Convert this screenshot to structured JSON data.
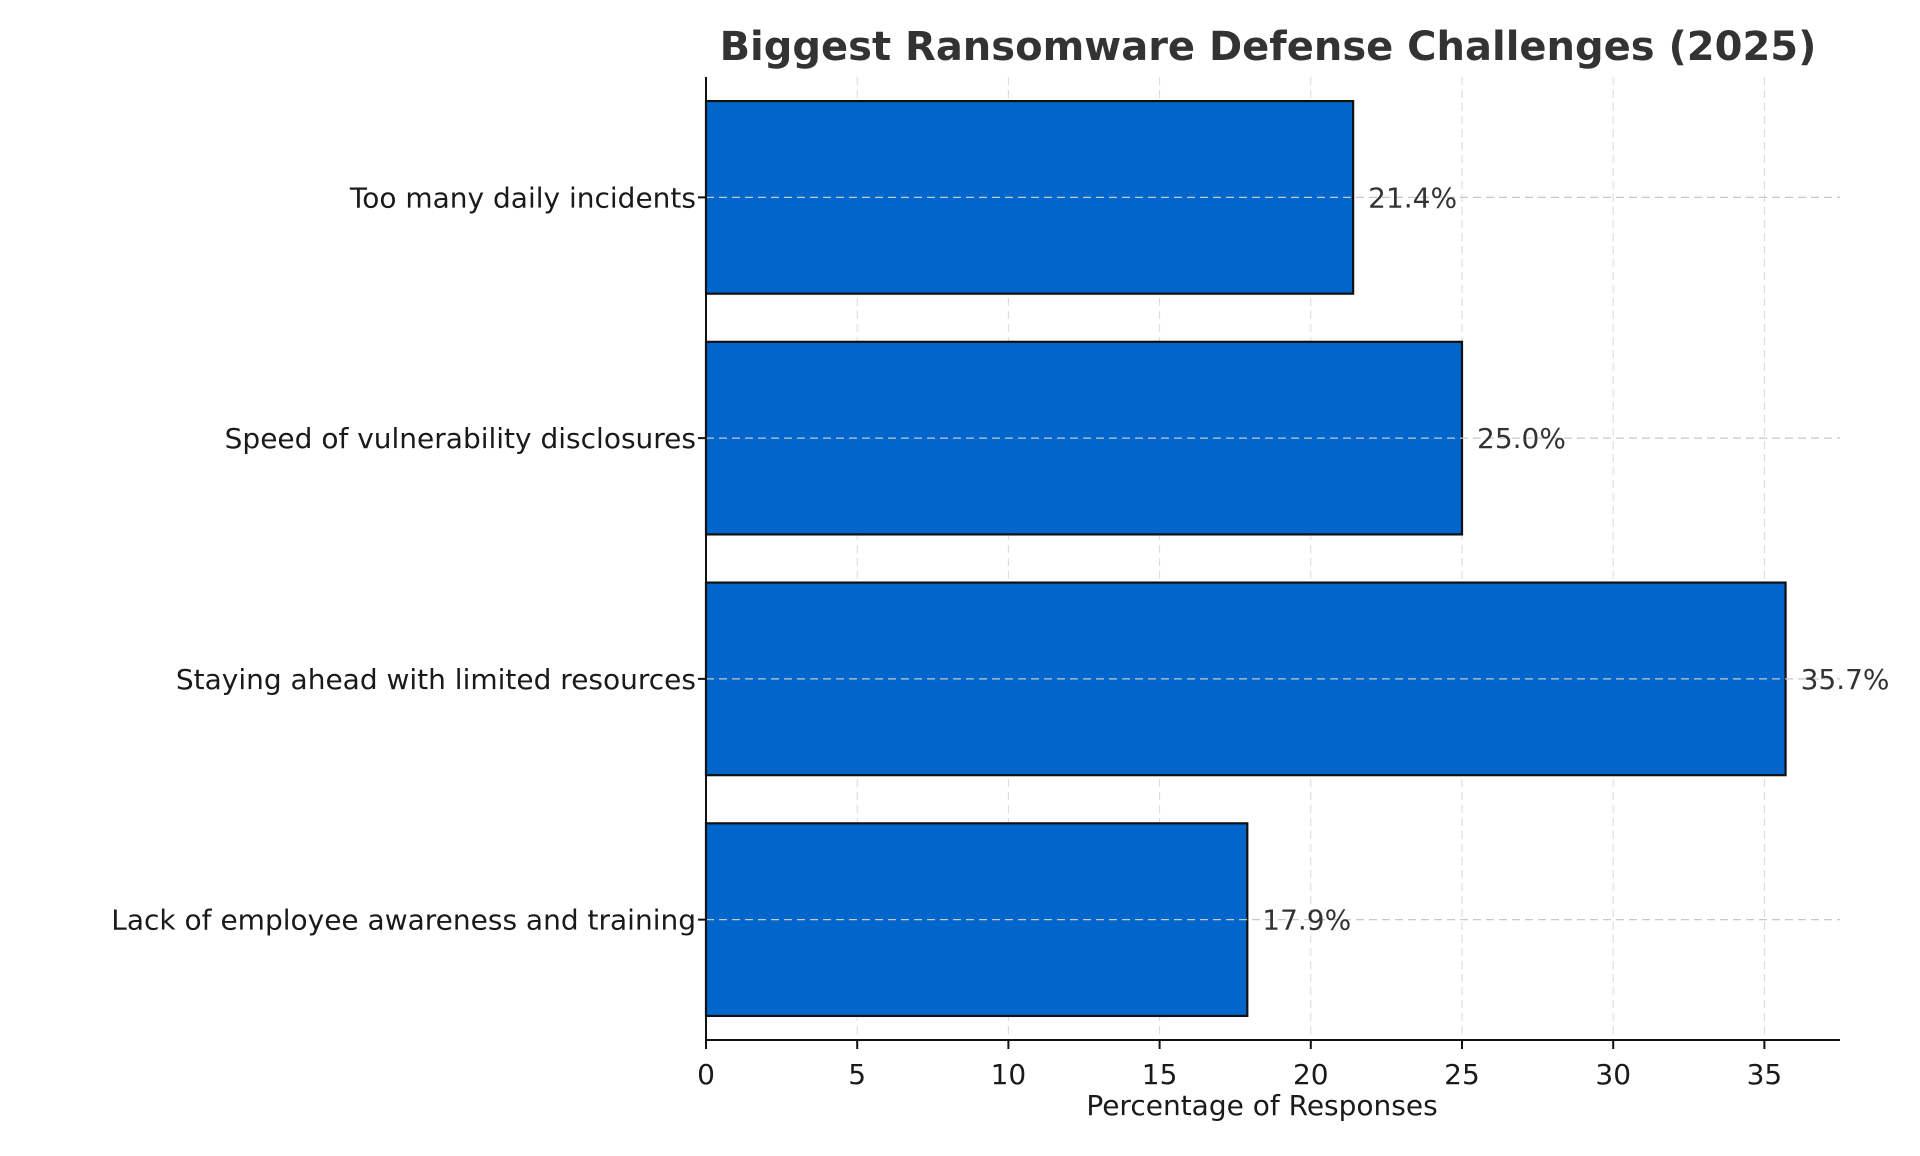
{
  "chart_data": {
    "type": "bar",
    "orientation": "horizontal",
    "title": "Biggest Ransomware Defense Challenges (2025)",
    "xlabel": "Percentage of Responses",
    "ylabel": "",
    "categories": [
      "Too many daily incidents",
      "Speed of vulnerability disclosures",
      "Staying ahead with limited resources",
      "Lack of employee awareness and training"
    ],
    "values": [
      21.4,
      25.0,
      35.7,
      17.9
    ],
    "value_labels": [
      "21.4%",
      "25.0%",
      "35.7%",
      "17.9%"
    ],
    "xlim": [
      0,
      37.5
    ],
    "xticks": [
      0,
      5,
      10,
      15,
      20,
      25,
      30,
      35
    ],
    "grid": true,
    "bar_color": "#0066cc"
  }
}
